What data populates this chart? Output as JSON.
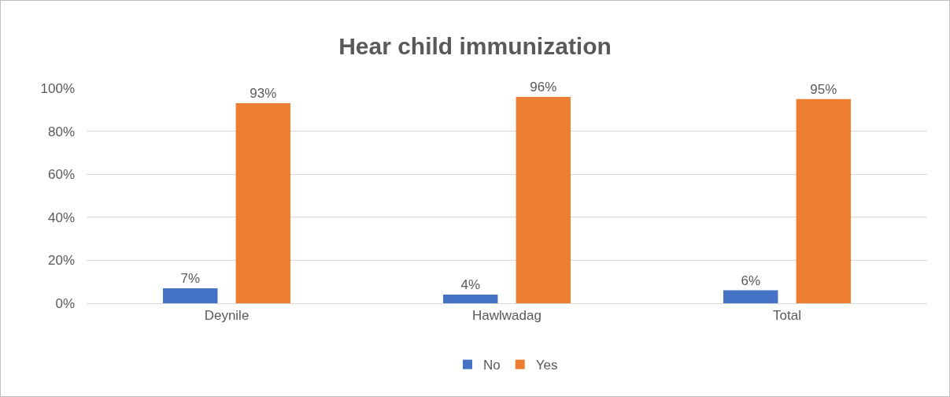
{
  "chart_data": {
    "type": "bar",
    "title": "Hear child immunization",
    "categories": [
      "Deynile",
      "Hawlwadag",
      "Total"
    ],
    "series": [
      {
        "name": "No",
        "color": "#4472c4",
        "values": [
          7,
          4,
          6
        ],
        "value_labels": [
          "7%",
          "4%",
          "6%"
        ]
      },
      {
        "name": "Yes",
        "color": "#ed7d31",
        "values": [
          93,
          96,
          95
        ],
        "value_labels": [
          "93%",
          "96%",
          "95%"
        ]
      }
    ],
    "ylim": [
      0,
      100
    ],
    "yticks": [
      {
        "value": 0,
        "label": "0%"
      },
      {
        "value": 20,
        "label": "20%"
      },
      {
        "value": 40,
        "label": "40%"
      },
      {
        "value": 60,
        "label": "60%"
      },
      {
        "value": 80,
        "label": "80%"
      },
      {
        "value": 100,
        "label": "100%"
      }
    ],
    "grid": "y",
    "legend": "bottom"
  }
}
